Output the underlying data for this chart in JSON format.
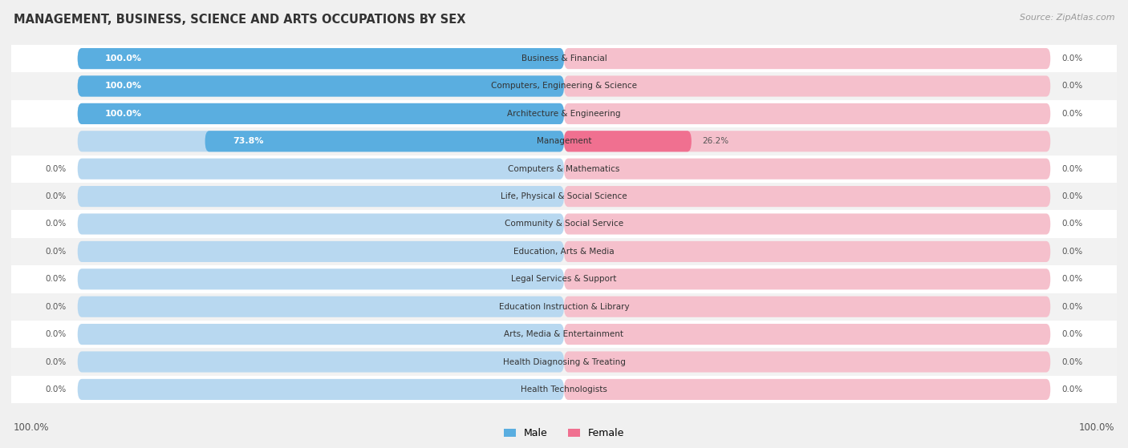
{
  "title": "MANAGEMENT, BUSINESS, SCIENCE AND ARTS OCCUPATIONS BY SEX",
  "source": "Source: ZipAtlas.com",
  "categories": [
    "Business & Financial",
    "Computers, Engineering & Science",
    "Architecture & Engineering",
    "Management",
    "Computers & Mathematics",
    "Life, Physical & Social Science",
    "Community & Social Service",
    "Education, Arts & Media",
    "Legal Services & Support",
    "Education Instruction & Library",
    "Arts, Media & Entertainment",
    "Health Diagnosing & Treating",
    "Health Technologists"
  ],
  "male_values": [
    100.0,
    100.0,
    100.0,
    73.8,
    0.0,
    0.0,
    0.0,
    0.0,
    0.0,
    0.0,
    0.0,
    0.0,
    0.0
  ],
  "female_values": [
    0.0,
    0.0,
    0.0,
    26.2,
    0.0,
    0.0,
    0.0,
    0.0,
    0.0,
    0.0,
    0.0,
    0.0,
    0.0
  ],
  "male_color_strong": "#5aaee0",
  "male_color_light": "#b8d8f0",
  "female_color_strong": "#f07090",
  "female_color_light": "#f5c0cc",
  "row_colors": [
    "#ffffff",
    "#f2f2f2"
  ],
  "legend_male": "Male",
  "legend_female": "Female",
  "bottom_left_label": "100.0%",
  "bottom_right_label": "100.0%",
  "fig_bg": "#f0f0f0"
}
